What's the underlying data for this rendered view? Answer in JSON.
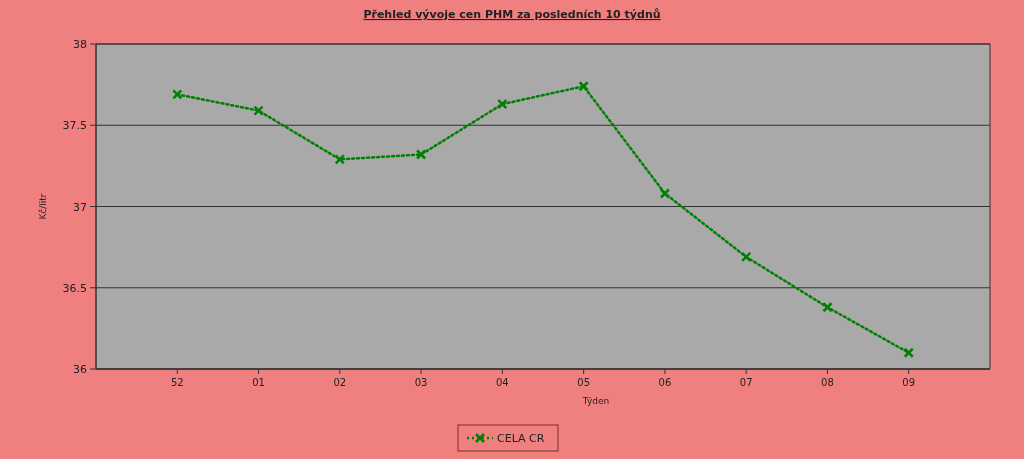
{
  "chart_data": {
    "type": "line",
    "title": "Přehled vývoje cen PHM za posledních 10 týdnů",
    "xlabel": "Týden",
    "ylabel": "Kč/litr",
    "categories": [
      "52",
      "01",
      "02",
      "03",
      "04",
      "05",
      "06",
      "07",
      "08",
      "09"
    ],
    "series": [
      {
        "name": "CELA CR",
        "color": "#008000",
        "values": [
          37.69,
          37.59,
          37.29,
          37.32,
          37.63,
          37.74,
          37.08,
          36.69,
          36.38,
          36.1
        ]
      }
    ],
    "ylim": [
      36,
      38
    ],
    "yticks": [
      36,
      36.5,
      37,
      37.5,
      38
    ],
    "grid": "y",
    "legend": "bottom",
    "marker": "cross",
    "line_style": "dotted"
  }
}
